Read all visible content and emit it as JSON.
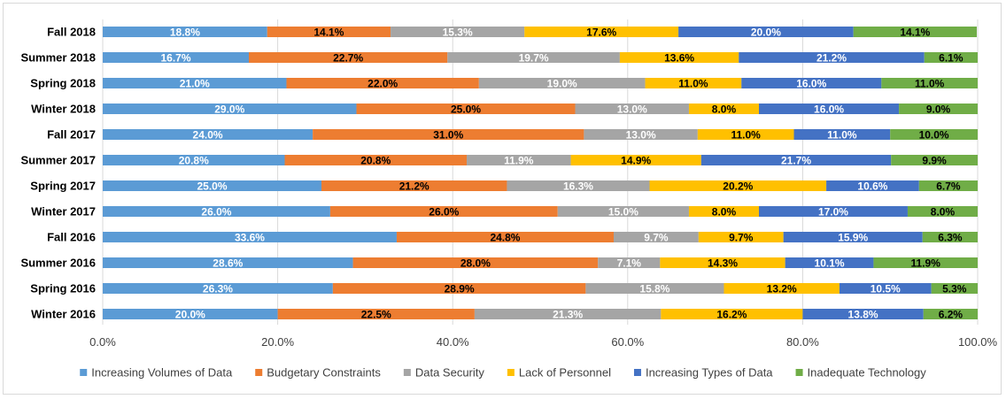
{
  "chart_data": {
    "type": "bar",
    "orientation": "horizontal",
    "stacked": "percent",
    "categories": [
      "Fall 2018",
      "Summer 2018",
      "Spring 2018",
      "Winter 2018",
      "Fall 2017",
      "Summer 2017",
      "Spring 2017",
      "Winter 2017",
      "Fall 2016",
      "Summer 2016",
      "Spring 2016",
      "Winter 2016"
    ],
    "series": [
      {
        "name": "Increasing Volumes of Data",
        "color": "#5b9bd5",
        "label_color": "#ffffff",
        "values": [
          18.8,
          16.7,
          21.0,
          29.0,
          24.0,
          20.8,
          25.0,
          26.0,
          33.6,
          28.6,
          26.3,
          20.0
        ],
        "labels": [
          "18.8%",
          "16.7%",
          "21.0%",
          "29.0%",
          "24.0%",
          "20.8%",
          "25.0%",
          "26.0%",
          "33.6%",
          "28.6%",
          "26.3%",
          "20.0%"
        ]
      },
      {
        "name": "Budgetary Constraints",
        "color": "#ed7d31",
        "label_color": "#000000",
        "values": [
          14.1,
          22.7,
          22.0,
          25.0,
          31.0,
          20.8,
          21.2,
          26.0,
          24.8,
          28.0,
          28.9,
          22.5
        ],
        "labels": [
          "14.1%",
          "22.7%",
          "22.0%",
          "25.0%",
          "31.0%",
          "20.8%",
          "21.2%",
          "26.0%",
          "24.8%",
          "28.0%",
          "28.9%",
          "22.5%"
        ]
      },
      {
        "name": "Data Security",
        "color": "#a5a5a5",
        "label_color": "#ffffff",
        "values": [
          15.3,
          19.7,
          19.0,
          13.0,
          13.0,
          11.9,
          16.3,
          15.0,
          9.7,
          7.1,
          15.8,
          21.3
        ],
        "labels": [
          "15.3%",
          "19.7%",
          "19.0%",
          "13.0%",
          "13.0%",
          "11.9%",
          "16.3%",
          "15.0%",
          "9.7%",
          "7.1%",
          "15.8%",
          "21.3%"
        ]
      },
      {
        "name": "Lack of Personnel",
        "color": "#ffc000",
        "label_color": "#000000",
        "values": [
          17.6,
          13.6,
          11.0,
          8.0,
          11.0,
          14.9,
          20.2,
          8.0,
          9.7,
          14.3,
          13.2,
          16.2
        ],
        "labels": [
          "17.6%",
          "13.6%",
          "11.0%",
          "8.0%",
          "11.0%",
          "14.9%",
          "20.2%",
          "8.0%",
          "9.7%",
          "14.3%",
          "13.2%",
          "16.2%"
        ]
      },
      {
        "name": "Increasing Types of Data",
        "color": "#4472c4",
        "label_color": "#ffffff",
        "values": [
          20.0,
          21.2,
          16.0,
          16.0,
          11.0,
          21.7,
          10.6,
          17.0,
          15.9,
          10.1,
          10.5,
          13.8
        ],
        "labels": [
          "20.0%",
          "21.2%",
          "16.0%",
          "16.0%",
          "11.0%",
          "21.7%",
          "10.6%",
          "17.0%",
          "15.9%",
          "10.1%",
          "10.5%",
          "13.8%"
        ]
      },
      {
        "name": "Inadequate Technology",
        "color": "#70ad47",
        "label_color": "#000000",
        "values": [
          14.1,
          6.1,
          11.0,
          9.0,
          10.0,
          9.9,
          6.7,
          8.0,
          6.3,
          11.9,
          5.3,
          6.2
        ],
        "labels": [
          "14.1%",
          "6.1%",
          "11.0%",
          "9.0%",
          "10.0%",
          "9.9%",
          "6.7%",
          "8.0%",
          "6.3%",
          "11.9%",
          "5.3%",
          "6.2%"
        ]
      }
    ],
    "xlim": [
      0,
      100
    ],
    "xticks": [
      0,
      20,
      40,
      60,
      80,
      100
    ],
    "xtick_labels": [
      "0.0%",
      "20.0%",
      "40.0%",
      "60.0%",
      "80.0%",
      "100.0%"
    ],
    "grid": "vertical",
    "gridline_color": "#d9d9d9",
    "legend_position": "bottom",
    "title": "",
    "xlabel": "",
    "ylabel": ""
  }
}
